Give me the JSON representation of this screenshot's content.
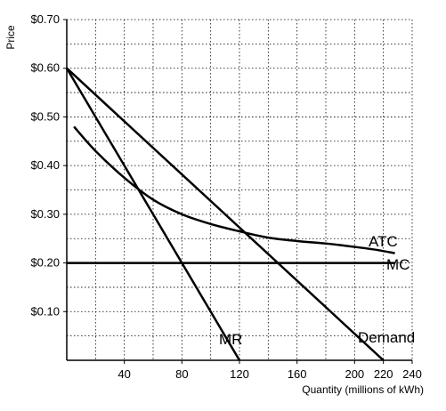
{
  "chart_data": {
    "type": "line",
    "title": "",
    "xlabel": "Quantity (millions of kWh)",
    "ylabel": "Price",
    "xlim": [
      0,
      240
    ],
    "ylim": [
      0,
      0.7
    ],
    "x_ticks": [
      40,
      80,
      120,
      160,
      200,
      220,
      240
    ],
    "x_tick_labels": [
      "40",
      "80",
      "120",
      "160",
      "200",
      "220",
      "240"
    ],
    "y_ticks": [
      0.1,
      0.2,
      0.3,
      0.4,
      0.5,
      0.6,
      0.7
    ],
    "y_tick_labels": [
      "$0.10",
      "$0.20",
      "$0.30",
      "$0.40",
      "$0.50",
      "$0.60",
      "$0.70"
    ],
    "grid": true,
    "grid_style": "dotted",
    "series": [
      {
        "name": "Demand",
        "x": [
          0,
          220
        ],
        "y": [
          0.6,
          0.0
        ]
      },
      {
        "name": "MR",
        "x": [
          0,
          120
        ],
        "y": [
          0.6,
          0.0
        ]
      },
      {
        "name": "MC",
        "x": [
          0,
          228
        ],
        "y": [
          0.2,
          0.2
        ]
      },
      {
        "name": "ATC",
        "x": [
          5,
          20,
          40,
          60,
          80,
          100,
          120,
          140,
          160,
          180,
          200,
          215,
          228
        ],
        "y": [
          0.48,
          0.43,
          0.375,
          0.33,
          0.3,
          0.28,
          0.265,
          0.252,
          0.245,
          0.24,
          0.233,
          0.227,
          0.22
        ]
      }
    ],
    "labels": {
      "ATC": "ATC",
      "MC": "MC",
      "MR": "MR",
      "Demand": "Demand"
    }
  }
}
